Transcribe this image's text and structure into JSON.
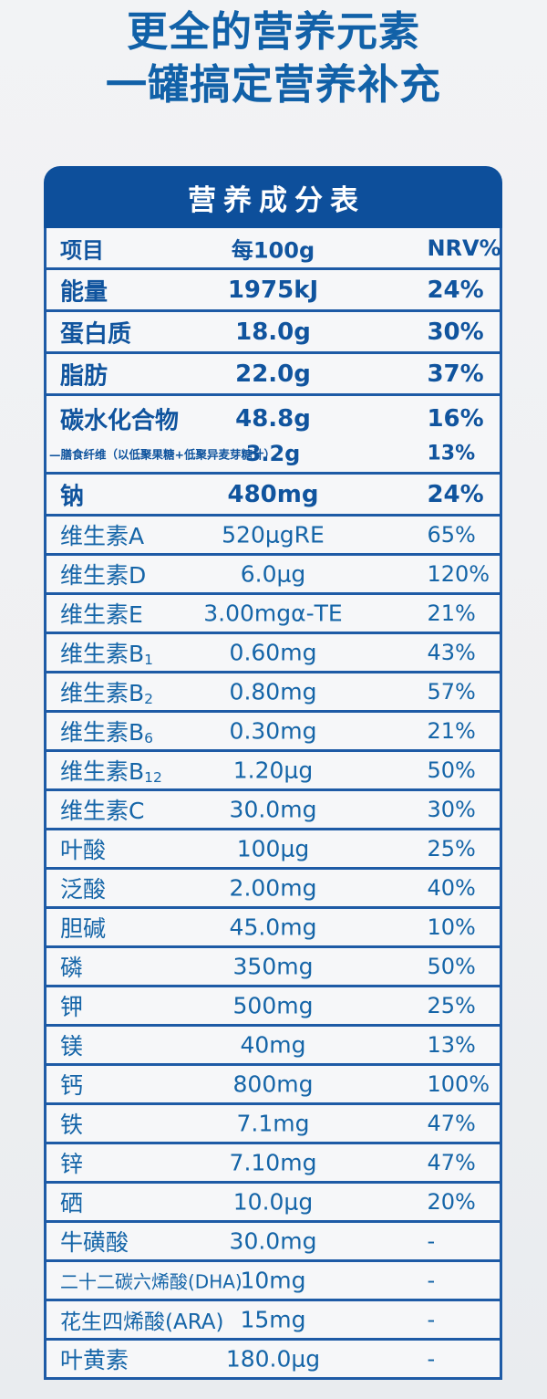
{
  "page": {
    "title_line1": "更全的营养元素",
    "title_line2": "一罐搞定营养补充"
  },
  "colors": {
    "accent_blue": "#1161a8",
    "header_bar_bg": "#0d4f9b",
    "table_border": "#1e5ba6",
    "bold_text": "#10549e",
    "row_bg": "#f6f7f9"
  },
  "table": {
    "header": "营养成分表",
    "columns": {
      "item": "项目",
      "per100g": "每100g",
      "nrv": "NRV%"
    },
    "rows": [
      {
        "label": "能量",
        "value": "1975kJ",
        "nrv": "24%",
        "bold": true
      },
      {
        "label": "蛋白质",
        "value": "18.0g",
        "nrv": "30%",
        "bold": true
      },
      {
        "label": "脂肪",
        "value": "22.0g",
        "nrv": "37%",
        "bold": true
      },
      {
        "label": "碳水化合物",
        "value": "48.8g",
        "nrv": "16%",
        "bold": true,
        "fiber_label": "—膳食纤维（以低聚果糖+低聚异麦芽糖计）",
        "fiber_value": "3.2g",
        "fiber_nrv": "13%"
      },
      {
        "label": "钠",
        "value": "480mg",
        "nrv": "24%",
        "bold": true
      },
      {
        "label": "维生素A",
        "value": "520μgRE",
        "nrv": "65%"
      },
      {
        "label": "维生素D",
        "value": "6.0μg",
        "nrv": "120%"
      },
      {
        "label": "维生素E",
        "value": "3.00mgα-TE",
        "nrv": "21%"
      },
      {
        "label": "维生素B",
        "sub": "1",
        "value": "0.60mg",
        "nrv": "43%"
      },
      {
        "label": "维生素B",
        "sub": "2",
        "value": "0.80mg",
        "nrv": "57%"
      },
      {
        "label": "维生素B",
        "sub": "6",
        "value": "0.30mg",
        "nrv": "21%"
      },
      {
        "label": "维生素B",
        "sub": "12",
        "value": "1.20μg",
        "nrv": "50%"
      },
      {
        "label": "维生素C",
        "value": "30.0mg",
        "nrv": "30%"
      },
      {
        "label": "叶酸",
        "value": "100μg",
        "nrv": "25%"
      },
      {
        "label": "泛酸",
        "value": "2.00mg",
        "nrv": "40%"
      },
      {
        "label": "胆碱",
        "value": "45.0mg",
        "nrv": "10%"
      },
      {
        "label": "磷",
        "value": "350mg",
        "nrv": "50%"
      },
      {
        "label": "钾",
        "value": "500mg",
        "nrv": "25%"
      },
      {
        "label": "镁",
        "value": "40mg",
        "nrv": "13%"
      },
      {
        "label": "钙",
        "value": "800mg",
        "nrv": "100%"
      },
      {
        "label": "铁",
        "value": "7.1mg",
        "nrv": "47%"
      },
      {
        "label": "锌",
        "value": "7.10mg",
        "nrv": "47%"
      },
      {
        "label": "硒",
        "value": "10.0μg",
        "nrv": "20%"
      },
      {
        "label": "牛磺酸",
        "value": "30.0mg",
        "nrv": "-"
      },
      {
        "label": "二十二碳六烯酸(DHA)",
        "value": "10mg",
        "nrv": "-",
        "label_size": "sm"
      },
      {
        "label": "花生四烯酸(ARA)",
        "value": "15mg",
        "nrv": "-",
        "label_size": "md"
      },
      {
        "label": "叶黄素",
        "value": "180.0μg",
        "nrv": "-"
      }
    ]
  }
}
